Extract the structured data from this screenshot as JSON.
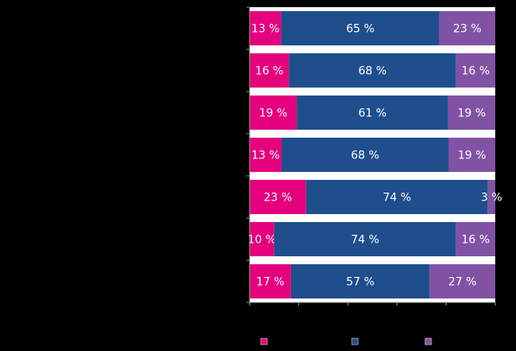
{
  "chart_data": {
    "type": "bar",
    "orientation": "horizontal",
    "stacked": "percent",
    "categories": [
      "",
      "",
      "",
      "",
      "",
      "",
      ""
    ],
    "series": [
      {
        "name": "",
        "color": "#e5007d",
        "values": [
          13,
          16,
          19,
          13,
          23,
          10,
          17
        ]
      },
      {
        "name": "",
        "color": "#1f4e8c",
        "values": [
          65,
          68,
          61,
          68,
          74,
          74,
          57
        ]
      },
      {
        "name": "",
        "color": "#8152a4",
        "values": [
          23,
          16,
          19,
          19,
          3,
          16,
          27
        ]
      }
    ],
    "value_labels": [
      [
        "13 %",
        "65 %",
        "23 %"
      ],
      [
        "16 %",
        "68 %",
        "16 %"
      ],
      [
        "19 %",
        "61 %",
        "19 %"
      ],
      [
        "13 %",
        "68 %",
        "19 %"
      ],
      [
        "23 %",
        "74 %",
        "3 %"
      ],
      [
        "10 %",
        "74 %",
        "16 %"
      ],
      [
        "17 %",
        "57 %",
        "27 %"
      ]
    ],
    "xlim": [
      0,
      100
    ],
    "grid": false,
    "legend": "bottom",
    "background": "#000000"
  }
}
